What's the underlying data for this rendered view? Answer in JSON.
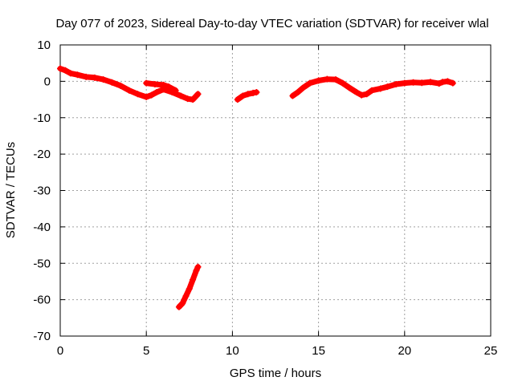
{
  "chart_data": {
    "type": "scatter",
    "title": "Day 077 of 2023, Sidereal Day-to-day VTEC variation (SDTVAR) for receiver wlal",
    "xlabel": "GPS time / hours",
    "ylabel": "SDTVAR / TECUs",
    "xlim": [
      0,
      25
    ],
    "ylim": [
      -70,
      10
    ],
    "xticks": [
      0,
      5,
      10,
      15,
      20,
      25
    ],
    "yticks": [
      -70,
      -60,
      -50,
      -40,
      -30,
      -20,
      -10,
      0,
      10
    ],
    "grid": true,
    "legend": "none",
    "colors": {
      "series": "#ff0000",
      "grid": "#a0a0a0",
      "axis": "#000000"
    },
    "series": [
      {
        "name": "SDTVAR",
        "segments": [
          [
            [
              0.0,
              3.5
            ],
            [
              0.3,
              3.0
            ],
            [
              0.6,
              2.2
            ],
            [
              1.0,
              1.8
            ],
            [
              1.5,
              1.2
            ],
            [
              2.0,
              1.0
            ],
            [
              2.5,
              0.5
            ],
            [
              3.0,
              -0.3
            ],
            [
              3.5,
              -1.2
            ],
            [
              4.0,
              -2.5
            ],
            [
              4.5,
              -3.5
            ],
            [
              5.0,
              -4.3
            ],
            [
              5.3,
              -3.8
            ],
            [
              5.6,
              -3.0
            ],
            [
              6.0,
              -2.2
            ],
            [
              6.5,
              -3.0
            ],
            [
              7.0,
              -4.0
            ],
            [
              7.4,
              -4.8
            ],
            [
              7.7,
              -5.0
            ],
            [
              8.0,
              -3.5
            ]
          ],
          [
            [
              5.0,
              -0.5
            ],
            [
              5.5,
              -0.8
            ],
            [
              6.0,
              -1.0
            ],
            [
              6.3,
              -1.5
            ],
            [
              6.7,
              -2.5
            ]
          ],
          [
            [
              6.9,
              -62.0
            ],
            [
              7.1,
              -61.0
            ],
            [
              7.3,
              -59.0
            ],
            [
              7.5,
              -57.0
            ],
            [
              7.7,
              -54.5
            ],
            [
              7.9,
              -52.0
            ],
            [
              8.0,
              -51.0
            ]
          ],
          [
            [
              10.3,
              -5.0
            ],
            [
              10.6,
              -4.0
            ],
            [
              10.9,
              -3.5
            ],
            [
              11.2,
              -3.2
            ],
            [
              11.4,
              -3.0
            ]
          ],
          [
            [
              13.5,
              -4.0
            ],
            [
              13.8,
              -3.0
            ],
            [
              14.1,
              -1.8
            ],
            [
              14.5,
              -0.5
            ],
            [
              15.0,
              0.2
            ],
            [
              15.5,
              0.6
            ],
            [
              16.0,
              0.5
            ],
            [
              16.4,
              -0.5
            ],
            [
              16.8,
              -1.8
            ],
            [
              17.2,
              -3.0
            ],
            [
              17.5,
              -3.8
            ],
            [
              17.8,
              -3.5
            ],
            [
              18.1,
              -2.5
            ],
            [
              18.6,
              -2.0
            ],
            [
              19.0,
              -1.5
            ],
            [
              19.5,
              -0.8
            ],
            [
              20.0,
              -0.5
            ],
            [
              20.5,
              -0.3
            ],
            [
              21.0,
              -0.4
            ],
            [
              21.5,
              -0.2
            ],
            [
              22.0,
              -0.6
            ],
            [
              22.2,
              -0.2
            ],
            [
              22.5,
              0.0
            ],
            [
              22.8,
              -0.5
            ]
          ]
        ]
      }
    ]
  }
}
